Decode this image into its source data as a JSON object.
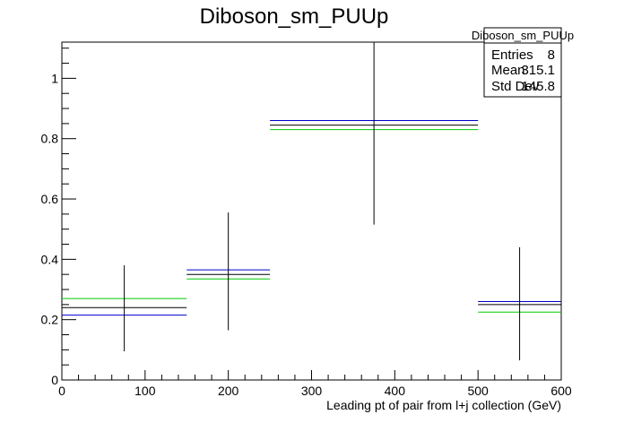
{
  "chart_data": {
    "type": "histogram",
    "title": "Diboson_sm_PUUp",
    "xlabel": "Leading pt of pair from l+j collection (GeV)",
    "ylabel": "",
    "xlim": [
      0,
      600
    ],
    "ylim": [
      0,
      1.12
    ],
    "x_ticks": [
      0,
      100,
      200,
      300,
      400,
      500,
      600
    ],
    "y_ticks": [
      0,
      0.2,
      0.4,
      0.6,
      0.8,
      1
    ],
    "x_tick_labels": [
      "0",
      "100",
      "200",
      "300",
      "400",
      "500",
      "600"
    ],
    "y_tick_labels": [
      "0",
      "0.2",
      "0.4",
      "0.6",
      "0.8",
      "1"
    ],
    "bins": [
      {
        "xlow": 0,
        "xhigh": 150,
        "center": 75,
        "value": 0.24,
        "err_low": 0.095,
        "err_high": 0.38,
        "up": 0.27,
        "down": 0.215
      },
      {
        "xlow": 150,
        "xhigh": 250,
        "center": 200,
        "value": 0.35,
        "err_low": 0.165,
        "err_high": 0.555,
        "up": 0.335,
        "down": 0.365
      },
      {
        "xlow": 250,
        "xhigh": 500,
        "center": 375,
        "value": 0.845,
        "err_low": 0.515,
        "err_high": 1.12,
        "up": 0.83,
        "down": 0.86
      },
      {
        "xlow": 500,
        "xhigh": 600,
        "center": 550,
        "value": 0.25,
        "err_low": 0.065,
        "err_high": 0.44,
        "up": 0.225,
        "down": 0.26
      }
    ],
    "colors": {
      "nominal": "#000000",
      "up": "#00cc00",
      "down": "#0000cc"
    },
    "stats": {
      "title": "Diboson_sm_PUUp",
      "rows": [
        {
          "label": "Entries",
          "value": "8"
        },
        {
          "label": "Mean",
          "value": "315.1"
        },
        {
          "label": "Std Dev",
          "value": "145.8"
        }
      ]
    }
  }
}
